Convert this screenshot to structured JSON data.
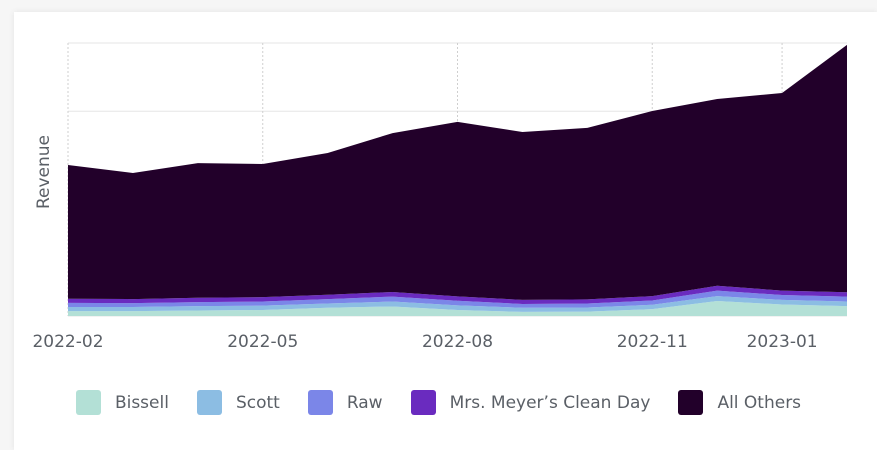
{
  "chart_data": {
    "type": "stacked_area",
    "ylabel": "Revenue",
    "categories": [
      "2022-02",
      null,
      null,
      "2022-05",
      null,
      null,
      "2022-08",
      null,
      null,
      "2022-11",
      null,
      "2023-01",
      null
    ],
    "series": [
      {
        "name": "Bissell",
        "color": "#b3e0d6",
        "values": [
          1.8,
          1.8,
          2.0,
          2.2,
          3.0,
          3.5,
          2.2,
          1.5,
          1.6,
          2.5,
          5.5,
          4.2,
          3.6
        ]
      },
      {
        "name": "Scott",
        "color": "#8cbde3",
        "values": [
          1.5,
          1.5,
          1.6,
          1.6,
          1.6,
          1.8,
          1.7,
          1.5,
          1.5,
          1.6,
          1.8,
          1.7,
          1.7
        ]
      },
      {
        "name": "Raw",
        "color": "#7b86e8",
        "values": [
          1.5,
          1.4,
          1.5,
          1.5,
          1.6,
          1.8,
          1.7,
          1.4,
          1.5,
          1.6,
          2.0,
          1.8,
          1.8
        ]
      },
      {
        "name": "Mrs. Meyer’s Clean Day",
        "color": "#6a2bbf",
        "values": [
          1.5,
          1.5,
          1.6,
          1.6,
          1.6,
          1.7,
          1.6,
          1.5,
          1.5,
          1.6,
          1.8,
          1.6,
          1.6
        ]
      },
      {
        "name": "All Others",
        "color": "#22002a",
        "values": [
          49.0,
          46.2,
          49.3,
          48.8,
          51.9,
          58.2,
          63.9,
          61.5,
          62.8,
          67.8,
          68.4,
          72.4,
          90.6
        ]
      }
    ],
    "ylim": [
      0,
      100
    ],
    "yticks": [
      0,
      25,
      50,
      75,
      100
    ],
    "grid": true
  }
}
